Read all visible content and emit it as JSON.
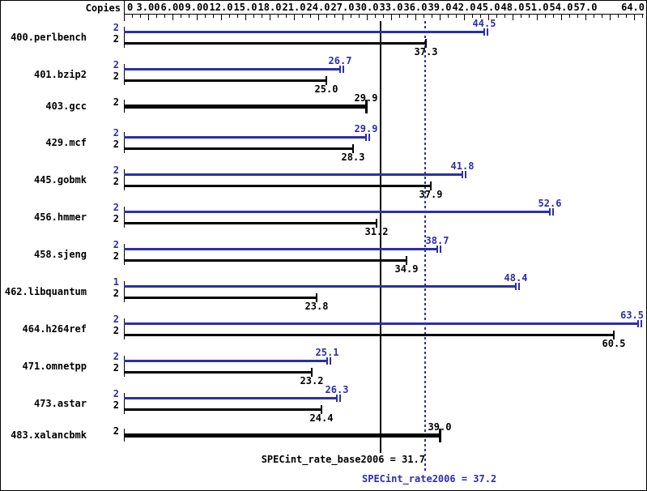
{
  "header": {
    "copies_label": "Copies"
  },
  "colors": {
    "peak": "#2e2ea8",
    "base": "#000000"
  },
  "axis": {
    "min": 0,
    "max": 64,
    "minor_step": 1,
    "major_step": 3,
    "labels": [
      {
        "v": 0,
        "t": "0"
      },
      {
        "v": 3,
        "t": "3.00"
      },
      {
        "v": 6,
        "t": "6.00"
      },
      {
        "v": 9,
        "t": "9.00"
      },
      {
        "v": 12,
        "t": "12.0"
      },
      {
        "v": 15,
        "t": "15.0"
      },
      {
        "v": 18,
        "t": "18.0"
      },
      {
        "v": 21,
        "t": "21.0"
      },
      {
        "v": 24,
        "t": "24.0"
      },
      {
        "v": 27,
        "t": "27.0"
      },
      {
        "v": 30,
        "t": "30.0"
      },
      {
        "v": 33,
        "t": "33.0"
      },
      {
        "v": 36,
        "t": "36.0"
      },
      {
        "v": 39,
        "t": "39.0"
      },
      {
        "v": 42,
        "t": "42.0"
      },
      {
        "v": 45,
        "t": "45.0"
      },
      {
        "v": 48,
        "t": "48.0"
      },
      {
        "v": 51,
        "t": "51.0"
      },
      {
        "v": 54,
        "t": "54.0"
      },
      {
        "v": 57,
        "t": "57.0"
      },
      {
        "v": 64,
        "t": "64.0"
      }
    ]
  },
  "benchmarks": [
    {
      "name": "400.perlbench",
      "bars": [
        {
          "series": "peak",
          "copies": "2",
          "value": 44.5,
          "label": "44.5"
        },
        {
          "series": "base",
          "copies": "2",
          "value": 37.3,
          "label": "37.3"
        }
      ]
    },
    {
      "name": "401.bzip2",
      "bars": [
        {
          "series": "peak",
          "copies": "2",
          "value": 26.7,
          "label": "26.7"
        },
        {
          "series": "base",
          "copies": "2",
          "value": 25.0,
          "label": "25.0"
        }
      ]
    },
    {
      "name": "403.gcc",
      "bars": [
        {
          "series": "base-only",
          "copies": "2",
          "value": 29.9,
          "label": "29.9"
        }
      ]
    },
    {
      "name": "429.mcf",
      "bars": [
        {
          "series": "peak",
          "copies": "2",
          "value": 29.9,
          "label": "29.9"
        },
        {
          "series": "base",
          "copies": "2",
          "value": 28.3,
          "label": "28.3"
        }
      ]
    },
    {
      "name": "445.gobmk",
      "bars": [
        {
          "series": "peak",
          "copies": "2",
          "value": 41.8,
          "label": "41.8"
        },
        {
          "series": "base",
          "copies": "2",
          "value": 37.9,
          "label": "37.9"
        }
      ]
    },
    {
      "name": "456.hmmer",
      "bars": [
        {
          "series": "peak",
          "copies": "2",
          "value": 52.6,
          "label": "52.6"
        },
        {
          "series": "base",
          "copies": "2",
          "value": 31.2,
          "label": "31.2"
        }
      ]
    },
    {
      "name": "458.sjeng",
      "bars": [
        {
          "series": "peak",
          "copies": "2",
          "value": 38.7,
          "label": "38.7"
        },
        {
          "series": "base",
          "copies": "2",
          "value": 34.9,
          "label": "34.9"
        }
      ]
    },
    {
      "name": "462.libquantum",
      "bars": [
        {
          "series": "peak",
          "copies": "1",
          "value": 48.4,
          "label": "48.4"
        },
        {
          "series": "base",
          "copies": "2",
          "value": 23.8,
          "label": "23.8"
        }
      ]
    },
    {
      "name": "464.h264ref",
      "bars": [
        {
          "series": "peak",
          "copies": "2",
          "value": 63.5,
          "label": "63.5"
        },
        {
          "series": "base",
          "copies": "2",
          "value": 60.5,
          "label": "60.5"
        }
      ]
    },
    {
      "name": "471.omnetpp",
      "bars": [
        {
          "series": "peak",
          "copies": "2",
          "value": 25.1,
          "label": "25.1"
        },
        {
          "series": "base",
          "copies": "2",
          "value": 23.2,
          "label": "23.2"
        }
      ]
    },
    {
      "name": "473.astar",
      "bars": [
        {
          "series": "peak",
          "copies": "2",
          "value": 26.3,
          "label": "26.3"
        },
        {
          "series": "base",
          "copies": "2",
          "value": 24.4,
          "label": "24.4"
        }
      ]
    },
    {
      "name": "483.xalancbmk",
      "bars": [
        {
          "series": "base-only",
          "copies": "2",
          "value": 39.0,
          "label": "39.0"
        }
      ]
    }
  ],
  "reference_lines": [
    {
      "id": "base",
      "value": 31.7,
      "style": "solid",
      "color": "#000000"
    },
    {
      "id": "peak",
      "value": 37.2,
      "style": "dotted",
      "color": "#2e2ea8"
    }
  ],
  "footer": {
    "base_label": "SPECint_rate_base2006 = 31.7",
    "peak_label": "SPECint_rate2006 = 37.2"
  },
  "chart_data": {
    "type": "bar",
    "orientation": "horizontal",
    "xlim": [
      0,
      64
    ],
    "x_tick_labels": [
      "0",
      "3.00",
      "6.00",
      "9.00",
      "12.0",
      "15.0",
      "18.0",
      "21.0",
      "24.0",
      "27.0",
      "30.0",
      "33.0",
      "36.0",
      "39.0",
      "42.0",
      "45.0",
      "48.0",
      "51.0",
      "54.0",
      "57.0",
      "64.0"
    ],
    "grid": false,
    "legend_position": "none",
    "categories": [
      "400.perlbench",
      "401.bzip2",
      "403.gcc",
      "429.mcf",
      "445.gobmk",
      "456.hmmer",
      "458.sjeng",
      "462.libquantum",
      "464.h264ref",
      "471.omnetpp",
      "473.astar",
      "483.xalancbmk"
    ],
    "series": [
      {
        "name": "SPECint_rate2006 (peak)",
        "color": "#2e2ea8",
        "copies": [
          2,
          2,
          null,
          2,
          2,
          2,
          2,
          1,
          2,
          2,
          2,
          null
        ],
        "values": [
          44.5,
          26.7,
          null,
          29.9,
          41.8,
          52.6,
          38.7,
          48.4,
          63.5,
          25.1,
          26.3,
          null
        ]
      },
      {
        "name": "SPECint_rate_base2006 (base)",
        "color": "#000000",
        "copies": [
          2,
          2,
          2,
          2,
          2,
          2,
          2,
          2,
          2,
          2,
          2,
          2
        ],
        "values": [
          37.3,
          25.0,
          29.9,
          28.3,
          37.9,
          31.2,
          34.9,
          23.8,
          60.5,
          23.2,
          24.4,
          39.0
        ]
      }
    ],
    "reference_lines": [
      {
        "label": "SPECint_rate_base2006",
        "value": 31.7,
        "style": "solid"
      },
      {
        "label": "SPECint_rate2006",
        "value": 37.2,
        "style": "dotted"
      }
    ]
  }
}
